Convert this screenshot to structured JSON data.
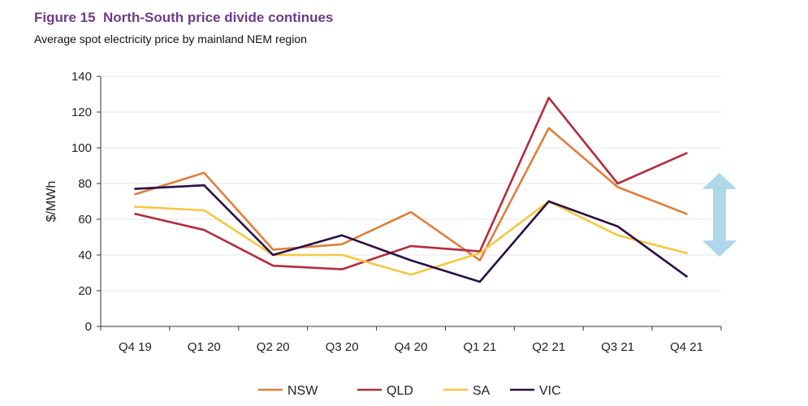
{
  "figure_title": "Figure 15  North-South price divide continues",
  "figure_subtitle": "Average spot electricity price by mainland NEM region",
  "chart_data": {
    "type": "line",
    "title": "Figure 15  North-South price divide continues",
    "subtitle": "Average spot electricity price by mainland NEM region",
    "xlabel": "",
    "ylabel": "$/MWh",
    "categories": [
      "Q4 19",
      "Q1 20",
      "Q2 20",
      "Q3 20",
      "Q4 20",
      "Q1 21",
      "Q2 21",
      "Q3 21",
      "Q4 21"
    ],
    "ylim": [
      0,
      140
    ],
    "yticks": [
      0,
      20,
      40,
      60,
      80,
      100,
      120,
      140
    ],
    "grid": "horizontal",
    "legend_position": "bottom",
    "series": [
      {
        "name": "NSW",
        "color": "#e07e3c",
        "values": [
          74,
          86,
          43,
          46,
          64,
          37,
          111,
          78,
          63
        ]
      },
      {
        "name": "QLD",
        "color": "#b22d3e",
        "values": [
          63,
          54,
          34,
          32,
          45,
          42,
          128,
          80,
          97
        ]
      },
      {
        "name": "SA",
        "color": "#f5c842",
        "values": [
          67,
          65,
          40,
          40,
          29,
          41,
          70,
          51,
          41
        ]
      },
      {
        "name": "VIC",
        "color": "#2a1045",
        "values": [
          77,
          79,
          40,
          51,
          37,
          25,
          70,
          56,
          28
        ]
      }
    ],
    "annotation": {
      "shape": "double-headed vertical arrow",
      "color": "#aed8e8",
      "from": 39,
      "to": 86
    }
  }
}
